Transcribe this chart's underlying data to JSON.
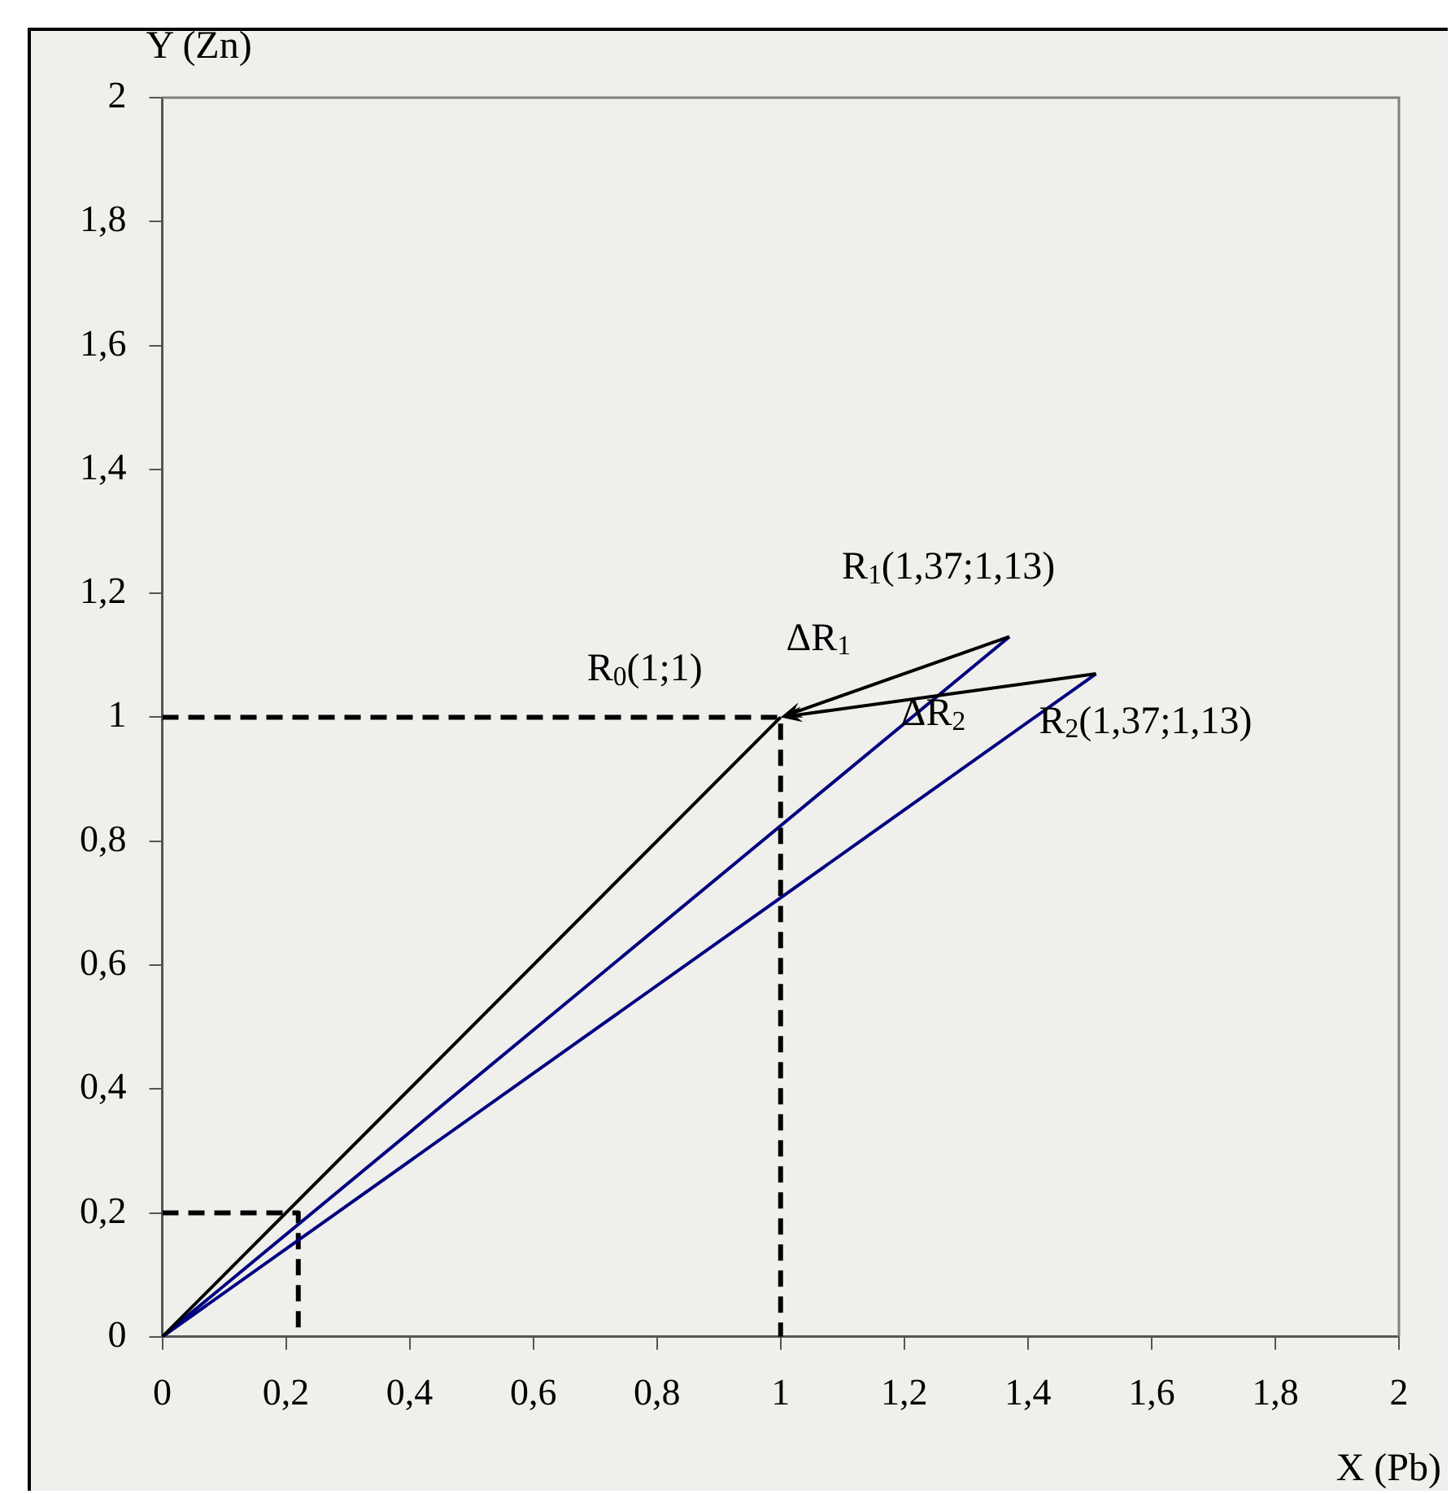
{
  "chart_data": {
    "type": "line",
    "xlabel": "X (Pb)",
    "ylabel": "Y (Zn)",
    "xlim": [
      0,
      2
    ],
    "ylim": [
      0,
      2
    ],
    "xticks": [
      0,
      {
        "value": 0.2,
        "label": "0,2"
      },
      {
        "value": 0.4,
        "label": "0,4"
      },
      {
        "value": 0.6,
        "label": "0,6"
      },
      {
        "value": 0.8,
        "label": "0,8"
      },
      1,
      {
        "value": 1.2,
        "label": "1,2"
      },
      {
        "value": 1.4,
        "label": "1,4"
      },
      {
        "value": 1.6,
        "label": "1,6"
      },
      {
        "value": 1.8,
        "label": "1,8"
      },
      2
    ],
    "yticks": [
      0,
      {
        "value": 0.2,
        "label": "0,2"
      },
      {
        "value": 0.4,
        "label": "0,4"
      },
      {
        "value": 0.6,
        "label": "0,6"
      },
      {
        "value": 0.8,
        "label": "0,8"
      },
      1,
      {
        "value": 1.2,
        "label": "1,2"
      },
      {
        "value": 1.4,
        "label": "1,4"
      },
      {
        "value": 1.6,
        "label": "1,6"
      },
      {
        "value": 1.8,
        "label": "1,8"
      },
      2
    ],
    "grid": false,
    "legend": false,
    "marker": "none",
    "series": [
      {
        "color": "#000000",
        "x": [
          0,
          1
        ],
        "values": [
          0,
          1
        ]
      },
      {
        "color": "#000080",
        "x": [
          0,
          1.37
        ],
        "values": [
          0,
          1.13
        ]
      },
      {
        "color": "#000080",
        "x": [
          0,
          1.51
        ],
        "values": [
          0,
          1.07
        ]
      },
      {
        "color": "#000000",
        "x": [
          0,
          1,
          1
        ],
        "values": [
          1,
          1,
          0
        ],
        "line_style": "dashed"
      },
      {
        "color": "#000000",
        "x": [
          0,
          0.22,
          0.22
        ],
        "values": [
          0.2,
          0.2,
          0
        ],
        "line_style": "dashed"
      }
    ],
    "annotations": [
      {
        "text": "R$_{0}$(1;1)",
        "x": 1,
        "y": 1
      },
      "ΔR$_{1}$",
      "ΔR$_{2}$",
      {
        "text": "R$_{1}$(1,37;1,13)",
        "x": 1.37,
        "y": 1.13
      },
      {
        "text": "R$_{2}$(1,37;1,13)",
        "x": 1.51,
        "y": 1.07
      }
    ]
  }
}
